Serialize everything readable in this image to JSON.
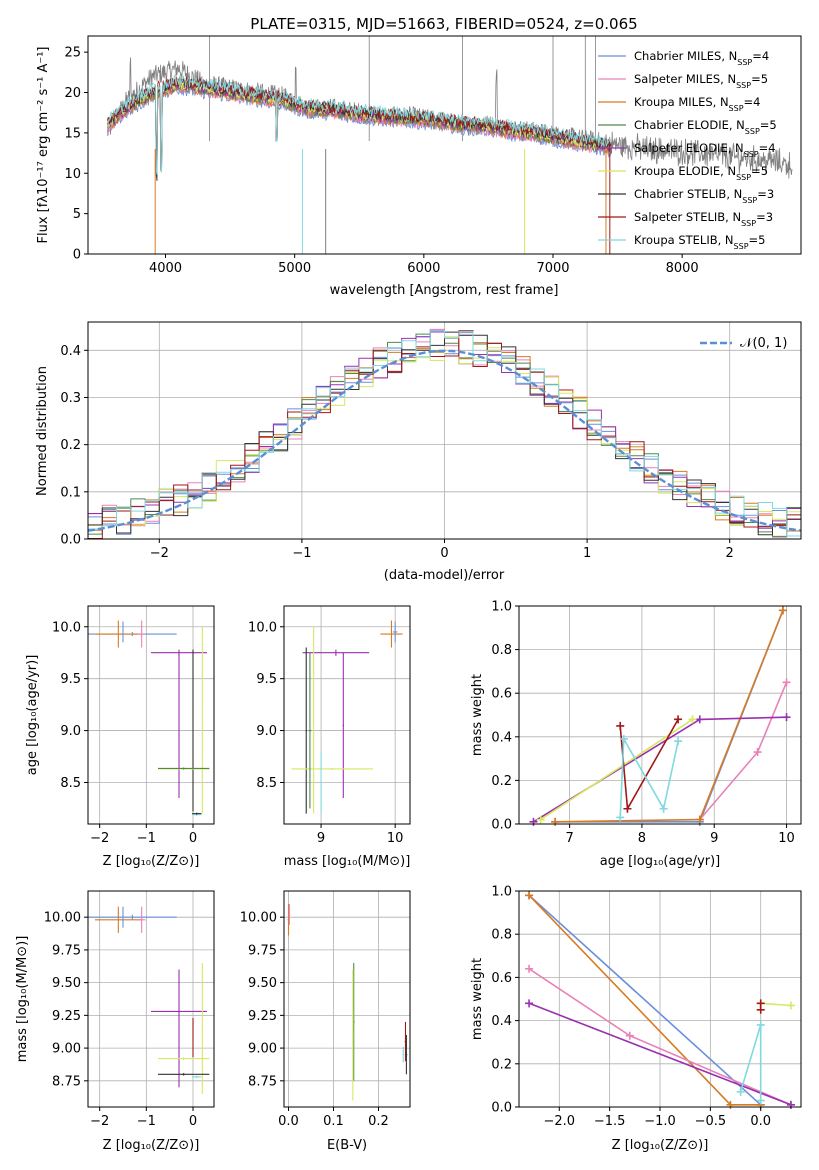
{
  "title": "PLATE=0315, MJD=51663, FIBERID=0524, z=0.065",
  "colors": {
    "Chabrier MILES": "#6a8fdb",
    "Salpeter MILES": "#e882b8",
    "Kroupa MILES": "#d87a22",
    "Chabrier ELODIE": "#4e8a4e",
    "Salpeter ELODIE": "#9a30b0",
    "Kroupa ELODIE": "#d8e860",
    "Chabrier STELIB": "#333333",
    "Salpeter STELIB": "#a01818",
    "Kroupa STELIB": "#80d8e0",
    "data": "#808080",
    "gauss": "#5a8fd8"
  },
  "spectrum_panel": {
    "xlabel": "wavelength [Angstrom, rest frame]",
    "ylabel": "Flux [f",
    "ylabel_text": "Flux [fλ10⁻¹⁷ erg cm⁻² s⁻¹ A⁻¹]",
    "xticks": [
      "4000",
      "5000",
      "6000",
      "7000",
      "8000"
    ],
    "yticks": [
      "0",
      "5",
      "10",
      "15",
      "20",
      "25"
    ],
    "legend": [
      {
        "name": "Chabrier MILES",
        "n": "4"
      },
      {
        "name": "Salpeter MILES",
        "n": "5"
      },
      {
        "name": "Kroupa MILES",
        "n": "4"
      },
      {
        "name": "Chabrier ELODIE",
        "n": "5"
      },
      {
        "name": "Salpeter ELODIE",
        "n": "4"
      },
      {
        "name": "Kroupa ELODIE",
        "n": "5"
      },
      {
        "name": "Chabrier STELIB",
        "n": "3"
      },
      {
        "name": "Salpeter STELIB",
        "n": "3"
      },
      {
        "name": "Kroupa STELIB",
        "n": "5"
      }
    ],
    "legend_suffix": "N",
    "legend_sub": "SSP"
  },
  "hist_panel": {
    "xlabel": "(data-model)/error",
    "ylabel": "Normed distribution",
    "xticks": [
      "−2",
      "−1",
      "0",
      "1",
      "2"
    ],
    "yticks": [
      "0.0",
      "0.1",
      "0.2",
      "0.3",
      "0.4"
    ],
    "legend": "𝒩(0, 1)"
  },
  "age_Z_panel": {
    "xlabel": "Z [log₁₀(Z/Z⊙)]",
    "ylabel": "age  [log₁₀(age/yr)]",
    "xticks": [
      "−2",
      "−1",
      "0"
    ],
    "yticks": [
      "8.5",
      "9.0",
      "9.5",
      "10.0"
    ]
  },
  "age_mass_panel": {
    "xlabel": "mass [log₁₀(M/M⊙)]",
    "xticks": [
      "9",
      "10"
    ],
    "yticks": [
      "8.5",
      "9.0",
      "9.5",
      "10.0"
    ]
  },
  "weight_age_panel": {
    "xlabel": "age  [log₁₀(age/yr)]",
    "ylabel": "mass weight",
    "xticks": [
      "7",
      "8",
      "9",
      "10"
    ],
    "yticks": [
      "0.0",
      "0.2",
      "0.4",
      "0.6",
      "0.8",
      "1.0"
    ]
  },
  "mass_Z_panel": {
    "xlabel": "Z [log₁₀(Z/Z⊙)]",
    "ylabel": "mass [log₁₀(M/M⊙)]",
    "xticks": [
      "−2",
      "−1",
      "0"
    ],
    "yticks": [
      "8.75",
      "9.00",
      "9.25",
      "9.50",
      "9.75",
      "10.00"
    ]
  },
  "mass_ebv_panel": {
    "xlabel": "E(B-V)",
    "xticks": [
      "0.0",
      "0.1",
      "0.2"
    ],
    "yticks": [
      "8.75",
      "9.00",
      "9.25",
      "9.50",
      "9.75",
      "10.00"
    ]
  },
  "weight_Z_panel": {
    "xlabel": "Z [log₁₀(Z/Z⊙)]",
    "ylabel": "mass weight",
    "xticks": [
      "−2.0",
      "−1.5",
      "−1.0",
      "−0.5",
      "0.0"
    ],
    "yticks": [
      "0.0",
      "0.2",
      "0.4",
      "0.6",
      "0.8",
      "1.0"
    ]
  },
  "chart_data": [
    {
      "type": "line",
      "title": "PLATE=0315, MJD=51663, FIBERID=0524, z=0.065",
      "xlabel": "wavelength [Angstrom, rest frame]",
      "xlim": [
        3400,
        8920
      ],
      "ylim": [
        0,
        27
      ],
      "series": [
        {
          "name": "data",
          "x": [
            3550,
            3700,
            3900,
            4100,
            4300,
            4500,
            4700,
            4900,
            5100,
            5300,
            5500,
            5700,
            5900,
            6100,
            6300,
            6500,
            6700,
            6900,
            7100,
            7300,
            7500,
            7700,
            7900,
            8100,
            8300,
            8500,
            8700,
            8850
          ],
          "y": [
            15,
            19,
            22,
            23,
            21,
            20.5,
            20,
            19.5,
            18,
            18,
            17.5,
            17,
            17,
            16.5,
            16,
            16,
            15.5,
            15,
            14.5,
            14,
            13.5,
            13,
            12.8,
            12.5,
            12.2,
            11.8,
            11.5,
            11
          ]
        },
        {
          "name": "model",
          "x": [
            3550,
            3700,
            3900,
            4100,
            4300,
            4500,
            4700,
            4900,
            5100,
            5300,
            5500,
            5700,
            5900,
            6100,
            6300,
            6500,
            6700,
            6900,
            7100,
            7300,
            7450
          ],
          "y": [
            16,
            18,
            20,
            21,
            20.5,
            20,
            19.5,
            19,
            18,
            17.8,
            17.3,
            17,
            16.8,
            16.5,
            16,
            15.8,
            15.2,
            14.8,
            14.2,
            13.6,
            13.2
          ]
        }
      ]
    },
    {
      "type": "line",
      "xlabel": "(data-model)/error",
      "ylabel": "Normed distribution",
      "xlim": [
        -2.5,
        2.5
      ],
      "ylim": [
        0,
        0.46
      ],
      "series": [
        {
          "name": "𝒩(0, 1)",
          "x": [
            -2.5,
            -2,
            -1.5,
            -1,
            -0.5,
            0,
            0.5,
            1,
            1.5,
            2,
            2.5
          ],
          "y": [
            0.018,
            0.054,
            0.13,
            0.242,
            0.352,
            0.399,
            0.352,
            0.242,
            0.13,
            0.054,
            0.018
          ]
        }
      ]
    },
    {
      "type": "scatter",
      "xlabel": "age  [log₁₀(age/yr)]",
      "ylabel": "mass weight",
      "xlim": [
        6.3,
        10.2
      ],
      "ylim": [
        0,
        1
      ],
      "series": [
        {
          "name": "Chabrier MILES",
          "x": [
            6.8,
            8.8,
            9.95
          ],
          "y": [
            0.01,
            0.01,
            0.98
          ]
        },
        {
          "name": "Salpeter MILES",
          "x": [
            8.8,
            9.6,
            10.0
          ],
          "y": [
            0.02,
            0.33,
            0.65
          ]
        },
        {
          "name": "Kroupa MILES",
          "x": [
            6.8,
            8.8,
            9.95
          ],
          "y": [
            0.01,
            0.02,
            0.98
          ]
        },
        {
          "name": "Salpeter ELODIE",
          "x": [
            6.5,
            8.8,
            10.0
          ],
          "y": [
            0.01,
            0.48,
            0.49
          ]
        },
        {
          "name": "Kroupa ELODIE",
          "x": [
            6.6,
            8.7
          ],
          "y": [
            0.02,
            0.48
          ]
        },
        {
          "name": "Salpeter STELIB",
          "x": [
            7.7,
            7.8,
            8.5
          ],
          "y": [
            0.45,
            0.07,
            0.48
          ]
        },
        {
          "name": "Kroupa STELIB",
          "x": [
            7.7,
            7.75,
            8.3,
            8.5
          ],
          "y": [
            0.03,
            0.39,
            0.07,
            0.38
          ]
        }
      ]
    },
    {
      "type": "scatter",
      "xlabel": "Z [log₁₀(Z/Z⊙)]",
      "ylabel": "mass weight",
      "xlim": [
        -2.4,
        0.4
      ],
      "ylim": [
        0,
        1
      ],
      "series": [
        {
          "name": "Chabrier MILES",
          "x": [
            -2.3,
            0.0
          ],
          "y": [
            0.98,
            0.01
          ]
        },
        {
          "name": "Kroupa MILES",
          "x": [
            -2.3,
            -0.3,
            0.0
          ],
          "y": [
            0.98,
            0.01,
            0.01
          ]
        },
        {
          "name": "Salpeter MILES",
          "x": [
            -2.3,
            -1.3,
            0.3
          ],
          "y": [
            0.64,
            0.33,
            0.01
          ]
        },
        {
          "name": "Salpeter ELODIE",
          "x": [
            -2.3,
            0.3
          ],
          "y": [
            0.48,
            0.01
          ]
        },
        {
          "name": "Kroupa ELODIE",
          "x": [
            0.0,
            0.3
          ],
          "y": [
            0.48,
            0.47
          ]
        },
        {
          "name": "Salpeter STELIB",
          "x": [
            0.0,
            0.0
          ],
          "y": [
            0.48,
            0.45
          ]
        },
        {
          "name": "Kroupa STELIB",
          "x": [
            -0.2,
            0.0,
            0.0
          ],
          "y": [
            0.07,
            0.38,
            0.03
          ]
        }
      ]
    }
  ]
}
